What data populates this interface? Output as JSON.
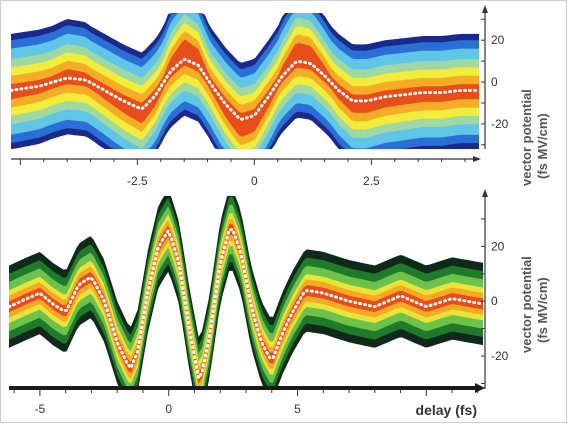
{
  "chart_data": [
    {
      "type": "line",
      "panel": "top",
      "title": "",
      "xlabel": "",
      "ylabel": "vector potential (fs MV/cm)",
      "ylabel_lines": [
        "vector potential",
        "(fs MV/cm)"
      ],
      "xlim": [
        -5.2,
        4.8
      ],
      "ylim": [
        -32,
        33
      ],
      "x_ticks": [
        -2.5,
        0,
        2.5
      ],
      "x_tick_labels": [
        "-2.5",
        "0",
        "2.5"
      ],
      "y_ticks": [
        20,
        0,
        -20
      ],
      "y_tick_labels": [
        "20",
        "0",
        "-20"
      ],
      "grid": false,
      "legend": "none",
      "colormap": [
        "#1a2a8c",
        "#2a6fd6",
        "#5fc6e8",
        "#9fd8a0",
        "#f2ec3a",
        "#f5a623",
        "#e8431c",
        "#b8160f"
      ],
      "series": [
        {
          "style": "dotted-white",
          "x": [
            -5.2,
            -4.6,
            -4.0,
            -3.6,
            -3.2,
            -2.8,
            -2.4,
            -2.1,
            -1.8,
            -1.5,
            -1.2,
            -0.9,
            -0.6,
            -0.3,
            0.0,
            0.3,
            0.6,
            0.9,
            1.2,
            1.5,
            1.8,
            2.1,
            2.4,
            2.8,
            3.2,
            3.6,
            4.0,
            4.4,
            4.8
          ],
          "y": [
            -4,
            -2,
            2,
            1,
            -4,
            -9,
            -13,
            -6,
            5,
            11,
            8,
            -2,
            -11,
            -18,
            -16,
            -7,
            3,
            10,
            9,
            3,
            -4,
            -9,
            -9,
            -7,
            -6,
            -5,
            -5,
            -4,
            -4
          ]
        }
      ]
    },
    {
      "type": "line",
      "panel": "bottom",
      "title": "",
      "xlabel": "delay (fs)",
      "ylabel": "vector potential (fs MV/cm)",
      "ylabel_lines": [
        "vector potential",
        "(fs MV/cm)"
      ],
      "xlim": [
        -6.2,
        12.2
      ],
      "ylim": [
        -32,
        38
      ],
      "x_ticks": [
        -5,
        0,
        5
      ],
      "x_tick_labels": [
        "-5",
        "0",
        "5"
      ],
      "y_ticks": [
        20,
        0,
        -20
      ],
      "y_tick_labels": [
        "20",
        "0",
        "-20"
      ],
      "grid": false,
      "legend": "none",
      "colormap": [
        "#0f2a1a",
        "#1f7a2a",
        "#6cc24a",
        "#e9e43a",
        "#f5a623",
        "#e8431c",
        "#b8160f"
      ],
      "series": [
        {
          "style": "dotted-white",
          "x": [
            -6.2,
            -5.5,
            -5.0,
            -4.5,
            -4.0,
            -3.5,
            -3.0,
            -2.5,
            -2.0,
            -1.5,
            -1.2,
            -0.8,
            -0.4,
            0.0,
            0.4,
            0.8,
            1.2,
            1.6,
            2.0,
            2.4,
            2.8,
            3.2,
            3.6,
            4.0,
            4.4,
            4.8,
            5.3,
            6.0,
            7.0,
            8.0,
            9.0,
            10.0,
            11.0,
            12.2
          ],
          "y": [
            -2,
            1,
            3,
            -1,
            -4,
            6,
            9,
            0,
            -15,
            -25,
            -18,
            4,
            20,
            26,
            14,
            -10,
            -30,
            -12,
            14,
            28,
            18,
            -2,
            -15,
            -22,
            -12,
            -4,
            4,
            3,
            0,
            -2,
            2,
            -2,
            1,
            -1
          ]
        }
      ]
    }
  ]
}
